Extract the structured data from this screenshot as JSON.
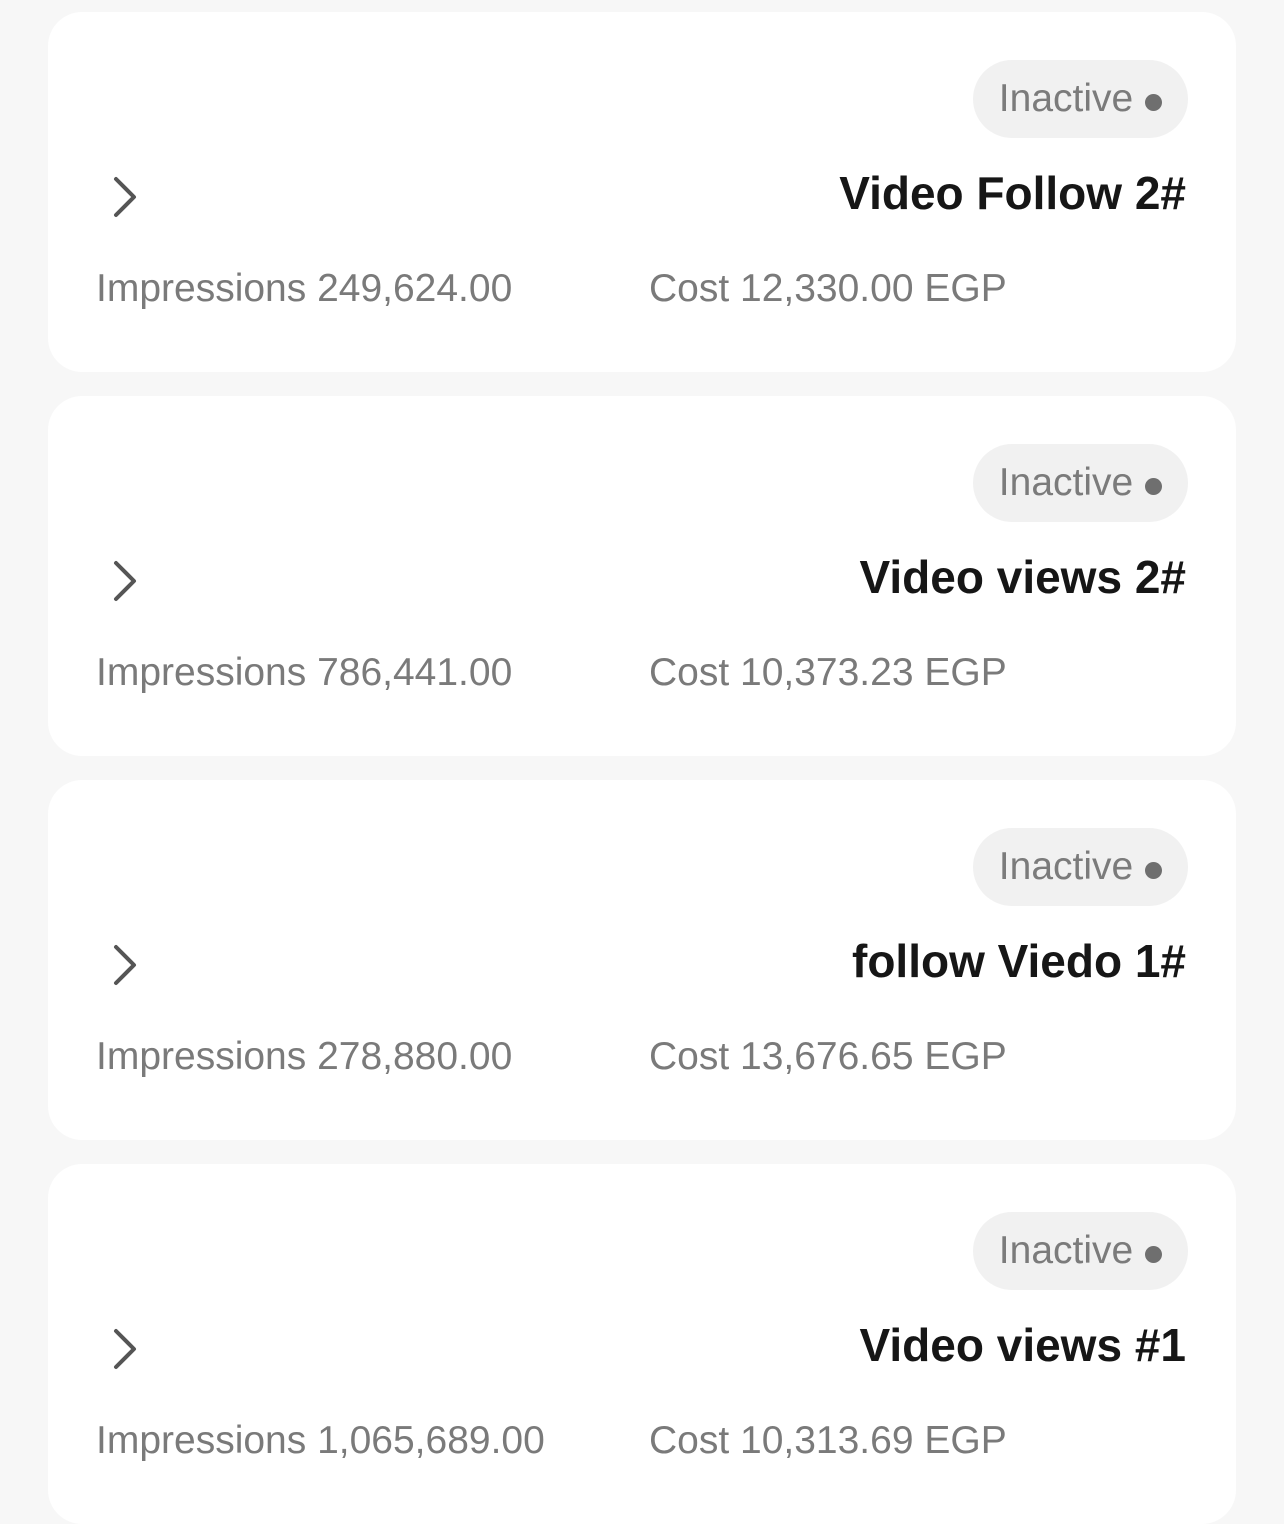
{
  "campaigns": [
    {
      "status": "Inactive",
      "name": "Video Follow 2#",
      "impressions": "Impressions 249,624.00",
      "cost": "Cost 12,330.00 EGP"
    },
    {
      "status": "Inactive",
      "name": "Video views 2#",
      "impressions": "Impressions 786,441.00",
      "cost": "Cost 10,373.23 EGP"
    },
    {
      "status": "Inactive",
      "name": "follow Viedo 1#",
      "impressions": "Impressions 278,880.00",
      "cost": "Cost 13,676.65 EGP"
    },
    {
      "status": "Inactive",
      "name": "Video views #1",
      "impressions": "Impressions 1,065,689.00",
      "cost": "Cost 10,313.69 EGP"
    }
  ],
  "colors": {
    "background": "#f7f7f7",
    "card": "#ffffff",
    "badge": "#f1f1f1",
    "muted_text": "#7a7a7a",
    "title_text": "#161616"
  }
}
